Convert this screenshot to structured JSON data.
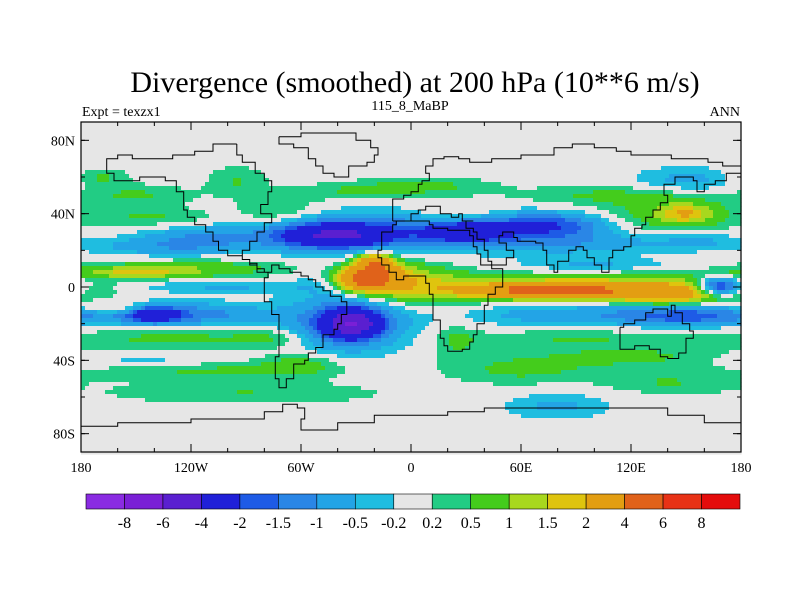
{
  "chart_data": {
    "type": "heatmap",
    "title": "Divergence (smoothed) at 200 hPa (10**6 m/s)",
    "subtitle_left": "Expt = texzx1",
    "subtitle_center": "115_8_MaBP",
    "subtitle_right": "ANN",
    "xlim": [
      -180,
      180
    ],
    "ylim": [
      -90,
      90
    ],
    "x_ticks": [
      {
        "value": -180,
        "label": "180"
      },
      {
        "value": -120,
        "label": "120W"
      },
      {
        "value": -60,
        "label": "60W"
      },
      {
        "value": 0,
        "label": "0"
      },
      {
        "value": 60,
        "label": "60E"
      },
      {
        "value": 120,
        "label": "120E"
      },
      {
        "value": 180,
        "label": "180"
      }
    ],
    "y_ticks": [
      {
        "value": 80,
        "label": "80N"
      },
      {
        "value": 40,
        "label": "40N"
      },
      {
        "value": 0,
        "label": "0"
      },
      {
        "value": -40,
        "label": "40S"
      },
      {
        "value": -80,
        "label": "80S"
      }
    ],
    "colorbar": {
      "labels": [
        "-8",
        "-6",
        "-4",
        "-2",
        "-1.5",
        "-1",
        "-0.5",
        "-0.2",
        "0.2",
        "0.5",
        "1",
        "1.5",
        "2",
        "4",
        "6",
        "8"
      ],
      "levels": [
        -8,
        -6,
        -4,
        -2,
        -1.5,
        -1,
        -0.5,
        -0.2,
        0.2,
        0.5,
        1,
        1.5,
        2,
        4,
        6,
        8
      ],
      "colors": [
        "#8a2be2",
        "#7a1fd6",
        "#5a1fd0",
        "#2020d8",
        "#1e5be6",
        "#2a86e6",
        "#23a4e6",
        "#1fbde0",
        "#e6e6e6",
        "#22cc84",
        "#44cc1c",
        "#a8d81e",
        "#dfc40e",
        "#e39e12",
        "#e0621a",
        "#e83216",
        "#e40c0c"
      ]
    },
    "anomaly_blobs": [
      {
        "lon": -170,
        "lat": 60,
        "rlon": 15,
        "rlat": 5,
        "value": 0.6
      },
      {
        "lon": -150,
        "lat": 50,
        "rlon": 32,
        "rlat": 6,
        "value": 0.55
      },
      {
        "lon": -140,
        "lat": 38,
        "rlon": 38,
        "rlat": 5,
        "value": 0.55
      },
      {
        "lon": -118,
        "lat": 10,
        "rlon": 55,
        "rlat": 5,
        "value": 0.8
      },
      {
        "lon": -150,
        "lat": 8,
        "rlon": 30,
        "rlat": 3,
        "value": 1.2
      },
      {
        "lon": -130,
        "lat": 22,
        "rlon": 40,
        "rlat": 5,
        "value": -0.9
      },
      {
        "lon": -115,
        "lat": 28,
        "rlon": 30,
        "rlat": 5,
        "value": -0.7
      },
      {
        "lon": -110,
        "lat": 0,
        "rlon": 65,
        "rlat": 4,
        "value": -0.6
      },
      {
        "lon": -130,
        "lat": -15,
        "rlon": 48,
        "rlat": 6,
        "value": -1.5
      },
      {
        "lon": -140,
        "lat": -15,
        "rlon": 12,
        "rlat": 4,
        "value": -2.5
      },
      {
        "lon": -160,
        "lat": -12,
        "rlon": 20,
        "rlat": 3,
        "value": 1.0
      },
      {
        "lon": -130,
        "lat": -28,
        "rlon": 55,
        "rlat": 7,
        "value": 0.6
      },
      {
        "lon": -110,
        "lat": -45,
        "rlon": 65,
        "rlat": 6,
        "value": 0.6
      },
      {
        "lon": -140,
        "lat": -40,
        "rlon": 45,
        "rlat": 4,
        "value": -0.5
      },
      {
        "lon": -90,
        "lat": -58,
        "rlon": 75,
        "rlat": 6,
        "value": 0.5
      },
      {
        "lon": -60,
        "lat": -42,
        "rlon": 20,
        "rlat": 6,
        "value": 0.6
      },
      {
        "lon": -75,
        "lat": -28,
        "rlon": 20,
        "rlat": 5,
        "value": 0.5
      },
      {
        "lon": -35,
        "lat": -20,
        "rlon": 30,
        "rlat": 14,
        "value": -1.8
      },
      {
        "lon": -32,
        "lat": -20,
        "rlon": 14,
        "rlat": 7,
        "value": -4.5
      },
      {
        "lon": -40,
        "lat": 5,
        "rlon": 20,
        "rlat": 10,
        "value": -1.3
      },
      {
        "lon": -25,
        "lat": 5,
        "rlon": 28,
        "rlat": 10,
        "value": 1.6
      },
      {
        "lon": -25,
        "lat": 4,
        "rlon": 16,
        "rlat": 6,
        "value": 4.2
      },
      {
        "lon": -20,
        "lat": 14,
        "rlon": 8,
        "rlat": 4,
        "value": 2.5
      },
      {
        "lon": -20,
        "lat": 10,
        "rlon": 14,
        "rlat": 6,
        "value": 1.5
      },
      {
        "lon": 10,
        "lat": 0,
        "rlon": 28,
        "rlat": 10,
        "value": 1.2
      },
      {
        "lon": -40,
        "lat": 30,
        "rlon": 55,
        "rlat": 10,
        "value": -1.4
      },
      {
        "lon": -42,
        "lat": 28,
        "rlon": 28,
        "rlat": 6,
        "value": -3.2
      },
      {
        "lon": -72,
        "lat": 40,
        "rlon": 22,
        "rlat": 10,
        "value": 0.7
      },
      {
        "lon": -95,
        "lat": 58,
        "rlon": 16,
        "rlat": 8,
        "value": 0.5
      },
      {
        "lon": -30,
        "lat": 52,
        "rlon": 30,
        "rlat": 5,
        "value": 0.5
      },
      {
        "lon": 10,
        "lat": 55,
        "rlon": 35,
        "rlat": 5,
        "value": 0.6
      },
      {
        "lon": 25,
        "lat": 40,
        "rlon": 20,
        "rlat": 6,
        "value": 0.5
      },
      {
        "lon": 40,
        "lat": 30,
        "rlon": 55,
        "rlat": 9,
        "value": -1.2
      },
      {
        "lon": 30,
        "lat": 30,
        "rlon": 20,
        "rlat": 5,
        "value": -2.2
      },
      {
        "lon": 75,
        "lat": 34,
        "rlon": 30,
        "rlat": 6,
        "value": -1.5
      },
      {
        "lon": 95,
        "lat": 24,
        "rlon": 45,
        "rlat": 6,
        "value": -0.7
      },
      {
        "lon": 100,
        "lat": 12,
        "rlon": 40,
        "rlat": 4,
        "value": -0.6
      },
      {
        "lon": 100,
        "lat": 50,
        "rlon": 45,
        "rlat": 5,
        "value": 0.5
      },
      {
        "lon": 140,
        "lat": 40,
        "rlon": 35,
        "rlat": 12,
        "value": 0.8
      },
      {
        "lon": 150,
        "lat": 40,
        "rlon": 14,
        "rlat": 5,
        "value": 1.4
      },
      {
        "lon": 150,
        "lat": 58,
        "rlon": 28,
        "rlat": 7,
        "value": -0.7
      },
      {
        "lon": 155,
        "lat": 25,
        "rlon": 25,
        "rlat": 5,
        "value": -0.6
      },
      {
        "lon": 110,
        "lat": 0,
        "rlon": 80,
        "rlat": 7,
        "value": 1.6
      },
      {
        "lon": 75,
        "lat": -2,
        "rlon": 38,
        "rlat": 4,
        "value": 4.5
      },
      {
        "lon": 140,
        "lat": -4,
        "rlon": 30,
        "rlat": 5,
        "value": 2.2
      },
      {
        "lon": 168,
        "lat": 0,
        "rlon": 12,
        "rlat": 5,
        "value": -3.0
      },
      {
        "lon": 100,
        "lat": -15,
        "rlon": 70,
        "rlat": 6,
        "value": -0.9
      },
      {
        "lon": 150,
        "lat": -16,
        "rlon": 30,
        "rlat": 5,
        "value": -1.3
      },
      {
        "lon": 90,
        "lat": -28,
        "rlon": 60,
        "rlat": 5,
        "value": 0.5
      },
      {
        "lon": 120,
        "lat": -38,
        "rlon": 50,
        "rlat": 6,
        "value": 0.6
      },
      {
        "lon": 140,
        "lat": -52,
        "rlon": 35,
        "rlat": 6,
        "value": 0.5
      },
      {
        "lon": 60,
        "lat": -45,
        "rlon": 40,
        "rlat": 8,
        "value": 0.6
      },
      {
        "lon": 80,
        "lat": -65,
        "rlon": 28,
        "rlat": 7,
        "value": -0.6
      },
      {
        "lon": 25,
        "lat": -30,
        "rlon": 12,
        "rlat": 10,
        "value": 0.5
      }
    ]
  }
}
